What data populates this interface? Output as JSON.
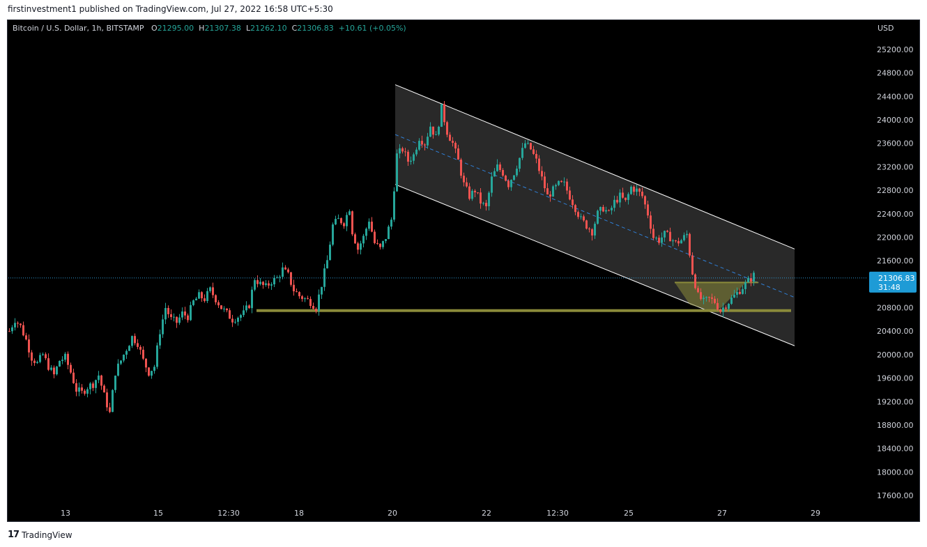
{
  "header": {
    "published": "firstinvestment1 published on TradingView.com, Jul 27, 2022 16:58 UTC+5:30"
  },
  "legend": {
    "symbol": "Bitcoin / U.S. Dollar, 1h, BITSTAMP",
    "o_label": "O",
    "o_value": "21295.00",
    "h_label": "H",
    "h_value": "21307.38",
    "l_label": "L",
    "l_value": "21262.10",
    "c_label": "C",
    "c_value": "21306.83",
    "change": "+10.61 (+0.05%)"
  },
  "axis": {
    "currency": "USD",
    "price_ticks": [
      "25200.00",
      "24800.00",
      "24400.00",
      "24000.00",
      "23600.00",
      "23200.00",
      "22800.00",
      "22400.00",
      "22000.00",
      "21600.00",
      "20800.00",
      "20400.00",
      "20000.00",
      "19600.00",
      "19200.00",
      "18800.00",
      "18400.00",
      "18000.00",
      "17600.00"
    ],
    "time_ticks": [
      "13",
      "15",
      "12:30",
      "18",
      "20",
      "22",
      "12:30",
      "25",
      "27",
      "29"
    ],
    "current_price": "21306.83",
    "countdown": "31:48"
  },
  "colors": {
    "up": "#26a69a",
    "down": "#ef5350",
    "channel_fill": "#2e2e2e",
    "channel_line": "#ffffff",
    "midline": "#2f7fd6",
    "support": "#8a8a3a",
    "price_line": "#2f9bd6",
    "price_label_bg": "#1e9bd6"
  },
  "footer": {
    "brand": "TradingView",
    "logo_icon": "tradingview-logo-icon"
  },
  "chart_data": {
    "type": "candlestick",
    "title": "Bitcoin / U.S. Dollar, 1h, BITSTAMP",
    "ylabel": "USD",
    "ylim": [
      17300,
      25500
    ],
    "grid": false,
    "close_path": [
      [
        0,
        20400
      ],
      [
        8,
        20600
      ],
      [
        16,
        20480
      ],
      [
        24,
        20250
      ],
      [
        32,
        19950
      ],
      [
        40,
        19850
      ],
      [
        48,
        20000
      ],
      [
        56,
        19800
      ],
      [
        64,
        19650
      ],
      [
        72,
        19900
      ],
      [
        80,
        19950
      ],
      [
        88,
        19700
      ],
      [
        96,
        19400
      ],
      [
        104,
        19350
      ],
      [
        112,
        19450
      ],
      [
        120,
        19500
      ],
      [
        128,
        19650
      ],
      [
        136,
        19300
      ],
      [
        144,
        19000
      ],
      [
        152,
        19700
      ],
      [
        160,
        19900
      ],
      [
        168,
        20100
      ],
      [
        176,
        20300
      ],
      [
        184,
        20200
      ],
      [
        192,
        19900
      ],
      [
        200,
        19700
      ],
      [
        208,
        19800
      ],
      [
        216,
        20400
      ],
      [
        224,
        20800
      ],
      [
        232,
        20600
      ],
      [
        240,
        20550
      ],
      [
        248,
        20700
      ],
      [
        256,
        20650
      ],
      [
        264,
        20900
      ],
      [
        272,
        21000
      ],
      [
        280,
        20950
      ],
      [
        288,
        21100
      ],
      [
        296,
        20950
      ],
      [
        304,
        20800
      ],
      [
        312,
        20700
      ],
      [
        320,
        20600
      ],
      [
        328,
        20650
      ],
      [
        336,
        20700
      ],
      [
        344,
        20850
      ],
      [
        352,
        21300
      ],
      [
        360,
        21200
      ],
      [
        368,
        21150
      ],
      [
        376,
        21250
      ],
      [
        384,
        21300
      ],
      [
        392,
        21450
      ],
      [
        400,
        21350
      ],
      [
        408,
        21100
      ],
      [
        416,
        21000
      ],
      [
        424,
        20950
      ],
      [
        432,
        20900
      ],
      [
        440,
        20800
      ],
      [
        448,
        21200
      ],
      [
        456,
        21600
      ],
      [
        464,
        22200
      ],
      [
        472,
        22300
      ],
      [
        480,
        22250
      ],
      [
        488,
        22500
      ],
      [
        492,
        22100
      ],
      [
        500,
        21800
      ],
      [
        508,
        22000
      ],
      [
        516,
        22300
      ],
      [
        524,
        21900
      ],
      [
        532,
        21800
      ],
      [
        540,
        22000
      ],
      [
        548,
        22300
      ],
      [
        556,
        23400
      ],
      [
        564,
        23500
      ],
      [
        572,
        23300
      ],
      [
        580,
        23400
      ],
      [
        588,
        23700
      ],
      [
        596,
        23600
      ],
      [
        604,
        23900
      ],
      [
        612,
        23700
      ],
      [
        620,
        24200
      ],
      [
        628,
        23800
      ],
      [
        636,
        23600
      ],
      [
        644,
        23300
      ],
      [
        652,
        22900
      ],
      [
        660,
        22700
      ],
      [
        668,
        22800
      ],
      [
        676,
        22600
      ],
      [
        684,
        22500
      ],
      [
        692,
        23000
      ],
      [
        700,
        23200
      ],
      [
        708,
        23100
      ],
      [
        716,
        22900
      ],
      [
        724,
        23100
      ],
      [
        732,
        23350
      ],
      [
        740,
        23600
      ],
      [
        748,
        23500
      ],
      [
        756,
        23300
      ],
      [
        764,
        23000
      ],
      [
        772,
        22700
      ],
      [
        780,
        22800
      ],
      [
        788,
        22900
      ],
      [
        796,
        22900
      ],
      [
        804,
        22700
      ],
      [
        812,
        22500
      ],
      [
        820,
        22300
      ],
      [
        828,
        22200
      ],
      [
        836,
        22100
      ],
      [
        844,
        22400
      ],
      [
        852,
        22500
      ],
      [
        860,
        22400
      ],
      [
        868,
        22600
      ],
      [
        876,
        22700
      ],
      [
        884,
        22600
      ],
      [
        892,
        22850
      ],
      [
        900,
        22800
      ],
      [
        908,
        22700
      ],
      [
        916,
        22400
      ],
      [
        924,
        22000
      ],
      [
        932,
        21950
      ],
      [
        940,
        22050
      ],
      [
        948,
        22000
      ],
      [
        956,
        21900
      ],
      [
        964,
        21950
      ],
      [
        972,
        22050
      ],
      [
        980,
        21400
      ],
      [
        988,
        21000
      ],
      [
        996,
        20900
      ],
      [
        1004,
        20950
      ],
      [
        1012,
        20900
      ],
      [
        1020,
        20750
      ],
      [
        1028,
        20850
      ],
      [
        1036,
        20950
      ],
      [
        1044,
        21050
      ],
      [
        1052,
        21150
      ],
      [
        1060,
        21250
      ],
      [
        1068,
        21350
      ],
      [
        1072,
        21307
      ]
    ],
    "channel": {
      "upper": {
        "start": [
          "Jul 20",
          24600
        ],
        "end": [
          "Jul 28",
          21800
        ]
      },
      "lower": {
        "start": [
          "Jul 20",
          22900
        ],
        "end": [
          "Jul 28",
          20150
        ]
      },
      "mid": {
        "start": [
          "Jul 20",
          23750
        ],
        "end": [
          "Jul 28",
          20975
        ]
      }
    },
    "support_level": 20750,
    "pattern": "inverse head and shoulders / rounding bottom near 20750–21200",
    "last_price": 21306.83
  }
}
